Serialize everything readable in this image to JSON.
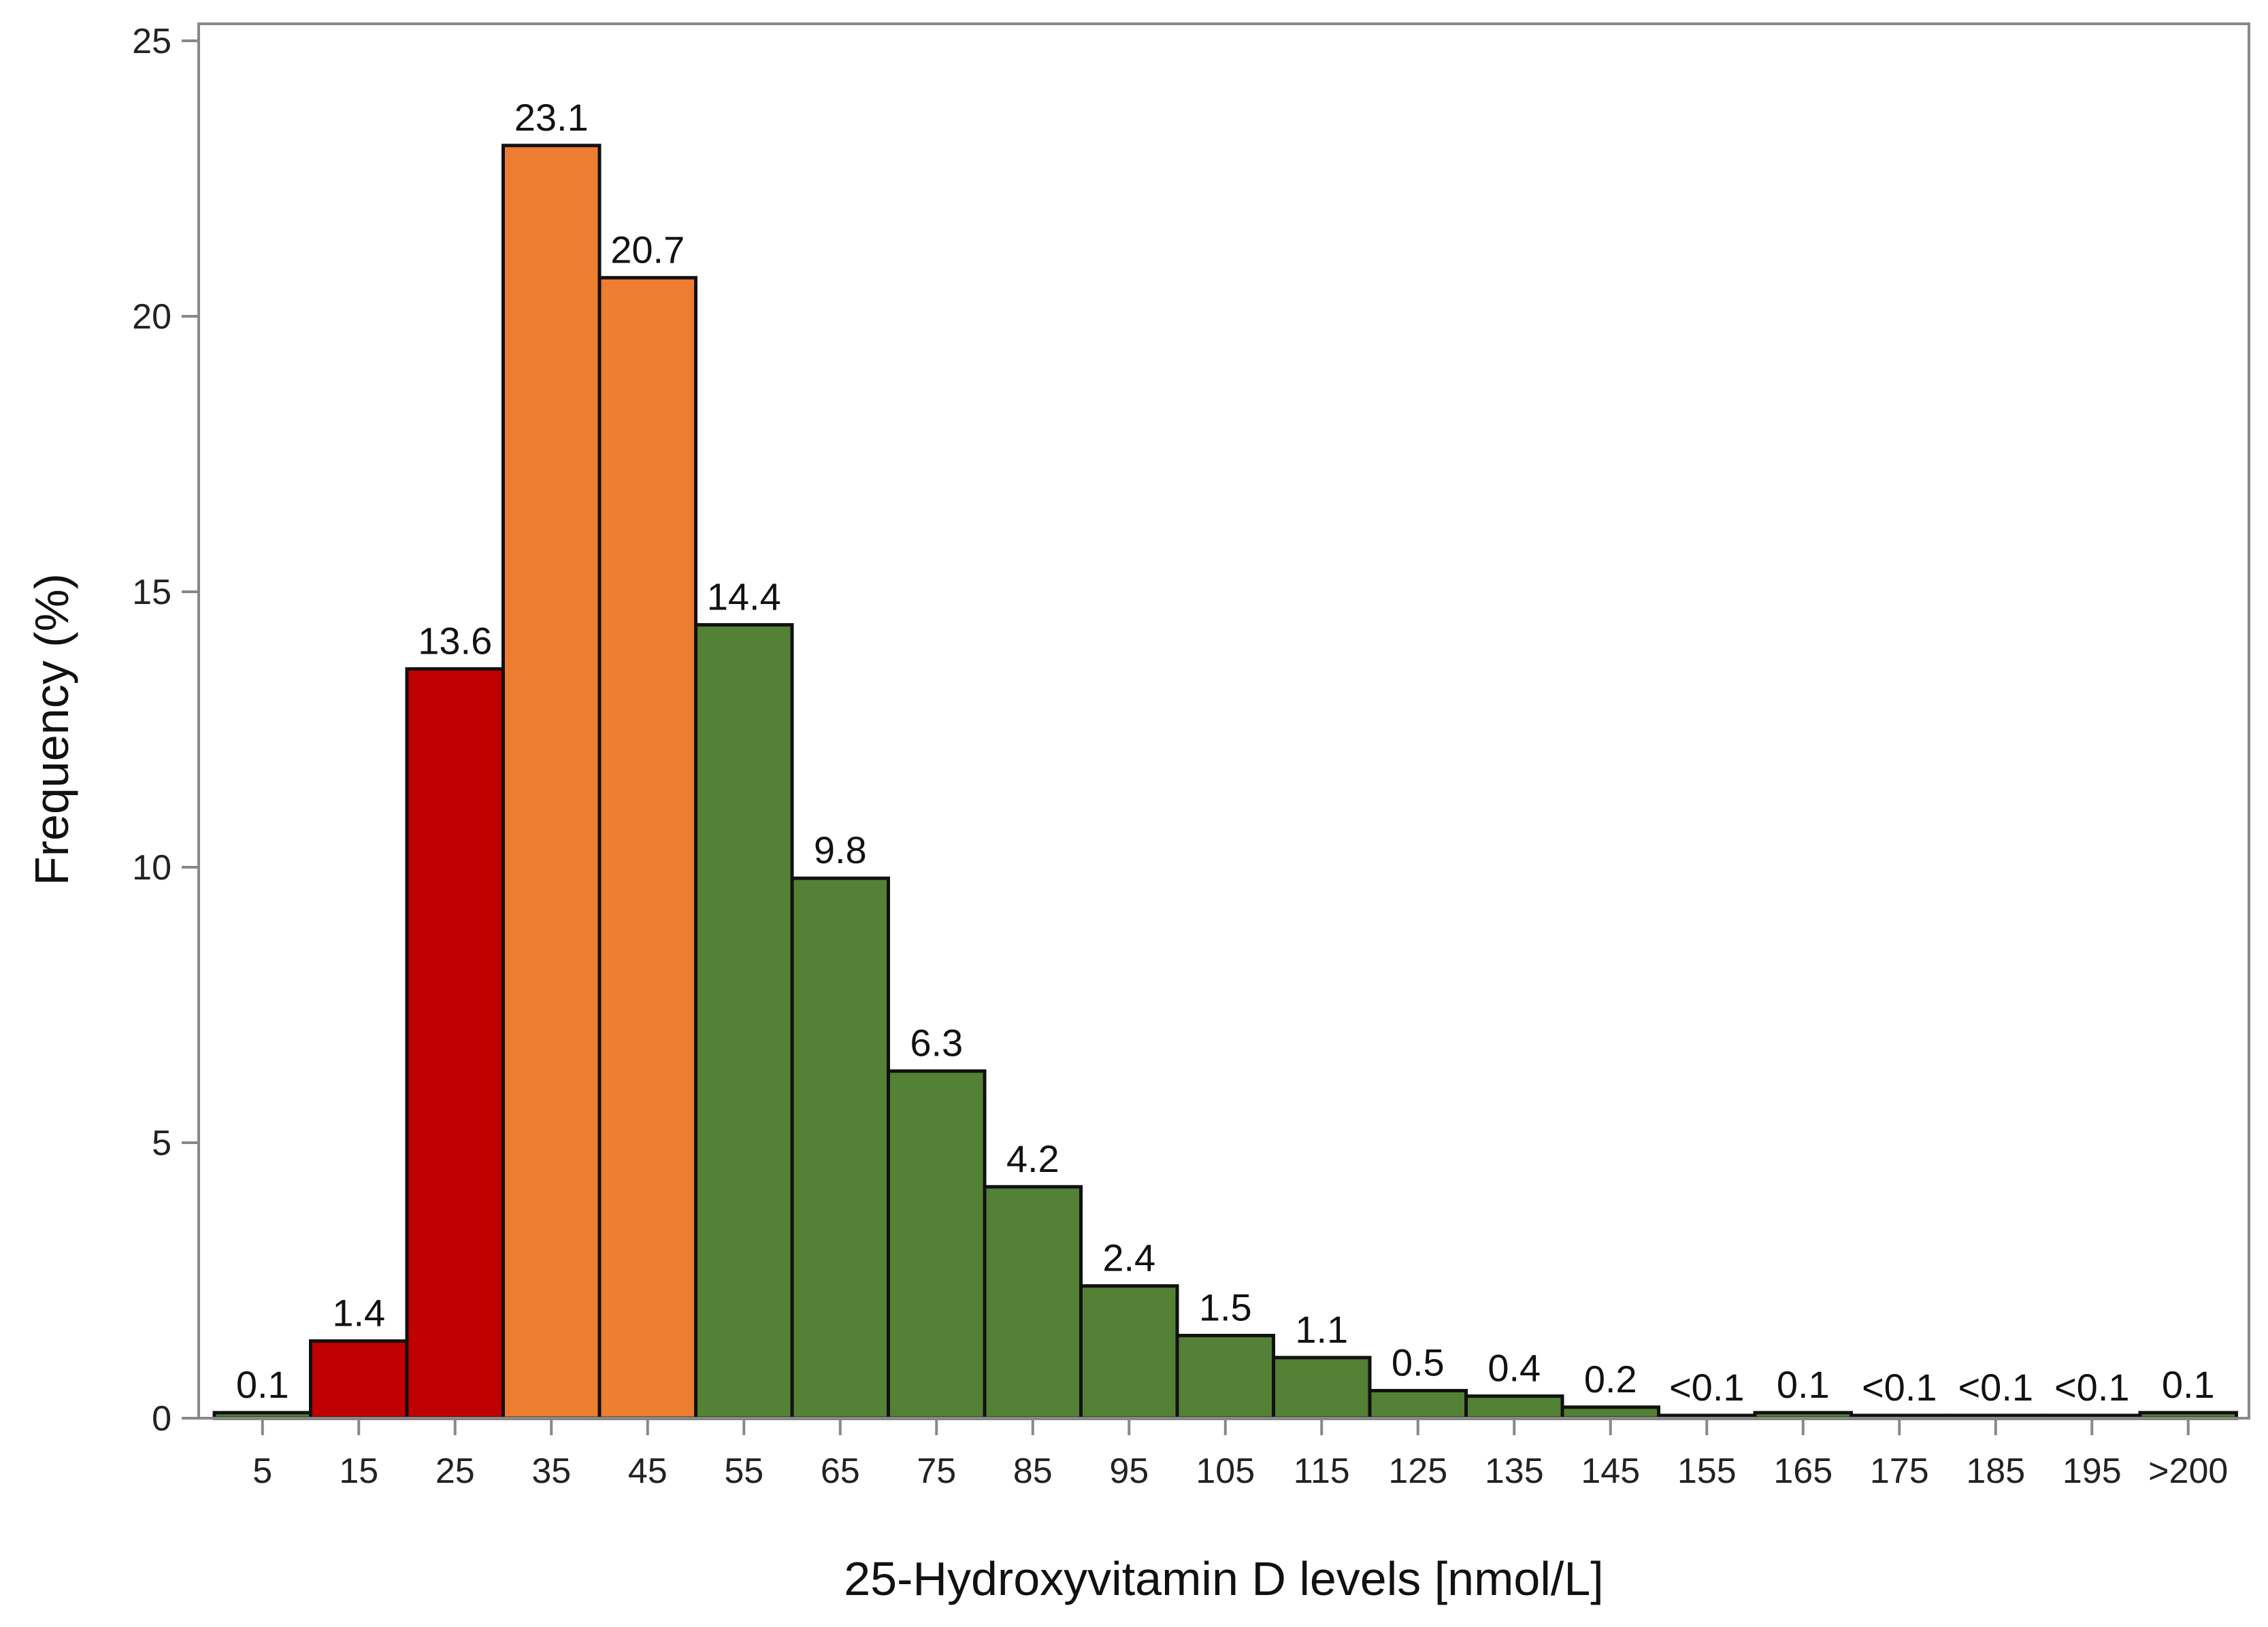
{
  "chart_data": {
    "type": "bar",
    "xlabel": "25-Hydroxyvitamin D levels [nmol/L]",
    "ylabel": "Frequency (%)",
    "ylim": [
      0,
      25
    ],
    "yticks": [
      0,
      5,
      10,
      15,
      20,
      25
    ],
    "grid": false,
    "categories": [
      "5",
      "15",
      "25",
      "35",
      "45",
      "55",
      "65",
      "75",
      "85",
      "95",
      "105",
      "115",
      "125",
      "135",
      "145",
      "155",
      "165",
      "175",
      "185",
      "195",
      ">200"
    ],
    "values": [
      0.1,
      1.4,
      13.6,
      23.1,
      20.7,
      14.4,
      9.8,
      6.3,
      4.2,
      2.4,
      1.5,
      1.1,
      0.5,
      0.4,
      0.2,
      0.05,
      0.1,
      0.05,
      0.05,
      0.05,
      0.1
    ],
    "data_labels": [
      "0.1",
      "1.4",
      "13.6",
      "23.1",
      "20.7",
      "14.4",
      "9.8",
      "6.3",
      "4.2",
      "2.4",
      "1.5",
      "1.1",
      "0.5",
      "0.4",
      "0.2",
      "<0.1",
      "0.1",
      "<0.1",
      "<0.1",
      "<0.1",
      "0.1"
    ],
    "bar_colors": [
      "#538135",
      "#c00000",
      "#c00000",
      "#ed7d31",
      "#ed7d31",
      "#538135",
      "#538135",
      "#538135",
      "#538135",
      "#538135",
      "#538135",
      "#538135",
      "#538135",
      "#538135",
      "#538135",
      "#538135",
      "#538135",
      "#538135",
      "#538135",
      "#538135",
      "#538135"
    ]
  },
  "colors": {
    "deficient": "#c00000",
    "insufficient": "#ed7d31",
    "sufficient": "#538135",
    "bar_outline": "#111111",
    "frame": "#888888"
  }
}
